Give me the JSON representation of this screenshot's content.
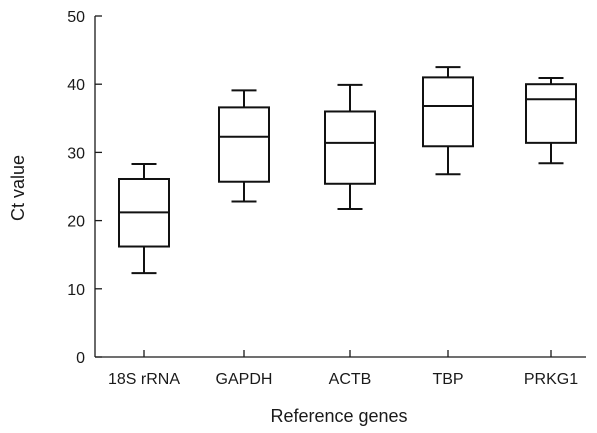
{
  "chart_data": {
    "type": "box",
    "title": "",
    "xlabel": "Reference genes",
    "ylabel": "Ct value",
    "ylim": [
      0,
      50
    ],
    "yticks": [
      0,
      10,
      20,
      30,
      40,
      50
    ],
    "grid": false,
    "legend": "none",
    "categories": [
      "18S rRNA",
      "GAPDH",
      "ACTB",
      "TBP",
      "PRKG1"
    ],
    "boxes": [
      {
        "category": "18S rRNA",
        "min": 12.3,
        "q1": 16.2,
        "median": 21.2,
        "q3": 26.1,
        "max": 28.3
      },
      {
        "category": "GAPDH",
        "min": 22.8,
        "q1": 25.7,
        "median": 32.3,
        "q3": 36.6,
        "max": 39.1
      },
      {
        "category": "ACTB",
        "min": 21.7,
        "q1": 25.4,
        "median": 31.4,
        "q3": 36.0,
        "max": 39.9
      },
      {
        "category": "TBP",
        "min": 26.8,
        "q1": 30.9,
        "median": 36.8,
        "q3": 41.0,
        "max": 42.5
      },
      {
        "category": "PRKG1",
        "min": 28.4,
        "q1": 31.4,
        "median": 37.8,
        "q3": 40.0,
        "max": 40.9
      }
    ]
  }
}
